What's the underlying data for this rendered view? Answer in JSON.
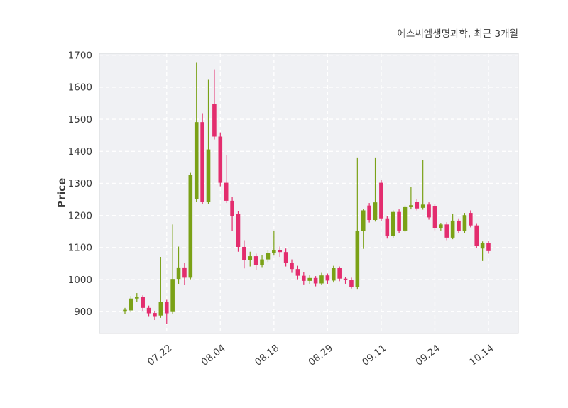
{
  "header": {
    "title": "에스씨엠생명과학, 최근 3개월"
  },
  "chart_data": {
    "type": "candlestick",
    "title": "에스씨엠생명과학, 최근 3개월",
    "xlabel": "",
    "ylabel": "Price",
    "ylim": [
      832,
      1706
    ],
    "yticks": [
      900,
      1000,
      1100,
      1200,
      1300,
      1400,
      1500,
      1600,
      1700
    ],
    "xticks": [
      {
        "label": "07.22",
        "i": 7
      },
      {
        "label": "08.04",
        "i": 16
      },
      {
        "label": "08.18",
        "i": 25
      },
      {
        "label": "08.29",
        "i": 34
      },
      {
        "label": "09.11",
        "i": 43
      },
      {
        "label": "09.24",
        "i": 52
      },
      {
        "label": "10.14",
        "i": 61
      }
    ],
    "grid": true,
    "grid_style": "dashed",
    "legend_position": "none",
    "colors": {
      "up": "#7aa116",
      "down": "#e32d6e",
      "plot_bg": "#f0f1f4",
      "grid": "#ffffff",
      "text": "#3a3a3a",
      "spine": "#d9dadd",
      "figure_bg": "#ffffff"
    },
    "ohlc_format": [
      "open",
      "high",
      "low",
      "close"
    ],
    "candles": [
      [
        900,
        912,
        893,
        906
      ],
      [
        904,
        949,
        898,
        941
      ],
      [
        941,
        958,
        930,
        947
      ],
      [
        946,
        951,
        902,
        912
      ],
      [
        912,
        919,
        884,
        895
      ],
      [
        896,
        903,
        874,
        884
      ],
      [
        888,
        1071,
        881,
        931
      ],
      [
        930,
        937,
        861,
        895
      ],
      [
        899,
        1172,
        892,
        1002
      ],
      [
        1002,
        1103,
        987,
        1038
      ],
      [
        1038,
        1053,
        984,
        1006
      ],
      [
        1006,
        1333,
        1001,
        1326
      ],
      [
        1251,
        1676,
        1243,
        1491
      ],
      [
        1491,
        1519,
        1235,
        1242
      ],
      [
        1242,
        1623,
        1237,
        1406
      ],
      [
        1547,
        1656,
        1437,
        1446
      ],
      [
        1446,
        1459,
        1291,
        1302
      ],
      [
        1302,
        1389,
        1239,
        1246
      ],
      [
        1246,
        1259,
        1151,
        1198
      ],
      [
        1206,
        1213,
        1087,
        1102
      ],
      [
        1102,
        1123,
        1035,
        1062
      ],
      [
        1062,
        1087,
        1041,
        1073
      ],
      [
        1073,
        1081,
        1031,
        1046
      ],
      [
        1046,
        1077,
        1039,
        1063
      ],
      [
        1063,
        1093,
        1055,
        1083
      ],
      [
        1083,
        1153,
        1075,
        1092
      ],
      [
        1092,
        1103,
        1071,
        1086
      ],
      [
        1086,
        1097,
        1041,
        1052
      ],
      [
        1052,
        1063,
        1021,
        1033
      ],
      [
        1033,
        1043,
        1001,
        1012
      ],
      [
        1012,
        1023,
        985,
        996
      ],
      [
        996,
        1015,
        987,
        1005
      ],
      [
        1005,
        1011,
        979,
        988
      ],
      [
        988,
        1021,
        983,
        1013
      ],
      [
        1013,
        1019,
        987,
        997
      ],
      [
        997,
        1043,
        991,
        1036
      ],
      [
        1036,
        1041,
        995,
        1003
      ],
      [
        1003,
        1009,
        987,
        998
      ],
      [
        998,
        1006,
        972,
        977
      ],
      [
        977,
        1381,
        971,
        1152
      ],
      [
        1152,
        1221,
        1096,
        1216
      ],
      [
        1231,
        1239,
        1178,
        1186
      ],
      [
        1186,
        1381,
        1181,
        1241
      ],
      [
        1302,
        1312,
        1182,
        1191
      ],
      [
        1191,
        1199,
        1128,
        1136
      ],
      [
        1136,
        1216,
        1131,
        1211
      ],
      [
        1211,
        1219,
        1146,
        1153
      ],
      [
        1153,
        1231,
        1148,
        1226
      ],
      [
        1226,
        1289,
        1219,
        1232
      ],
      [
        1242,
        1251,
        1216,
        1222
      ],
      [
        1224,
        1372,
        1218,
        1234
      ],
      [
        1234,
        1241,
        1187,
        1194
      ],
      [
        1230,
        1237,
        1154,
        1161
      ],
      [
        1161,
        1177,
        1153,
        1172
      ],
      [
        1172,
        1179,
        1123,
        1131
      ],
      [
        1131,
        1206,
        1126,
        1184
      ],
      [
        1184,
        1191,
        1144,
        1151
      ],
      [
        1151,
        1208,
        1146,
        1201
      ],
      [
        1208,
        1216,
        1163,
        1169
      ],
      [
        1169,
        1176,
        1098,
        1106
      ],
      [
        1097,
        1119,
        1058,
        1114
      ],
      [
        1114,
        1121,
        1081,
        1089
      ]
    ]
  }
}
